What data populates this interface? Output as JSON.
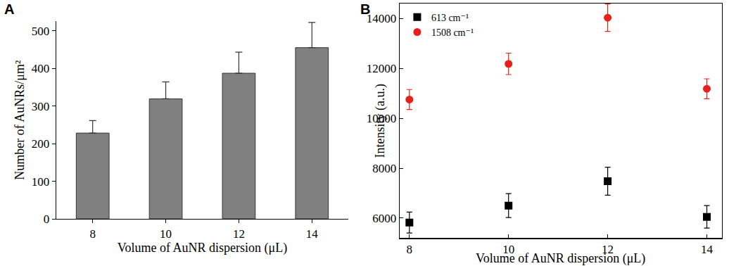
{
  "chart_data": [
    {
      "type": "bar",
      "title": "A",
      "x_label": "Volume of AuNR dispersion (μL)",
      "y_label": "Number of AuNRs/μm²",
      "categories": [
        "8",
        "10",
        "12",
        "14"
      ],
      "values": [
        228,
        319,
        387,
        455
      ],
      "errors": [
        33,
        45,
        56,
        67
      ],
      "color": "#808080",
      "ylim": [
        0,
        525
      ],
      "yticks": [
        0,
        100,
        200,
        300,
        400,
        500
      ],
      "grid": false
    },
    {
      "type": "scatter",
      "title": "B",
      "x_label": "Volume of AuNR dispersion (μL)",
      "y_label": "Intensity (a.u.)",
      "x": [
        8,
        10,
        12,
        14
      ],
      "series": [
        {
          "name": "613 cm⁻¹",
          "color": "#000000",
          "marker": "square",
          "values": [
            5820,
            6500,
            7480,
            6050
          ],
          "errors": [
            420,
            480,
            560,
            450
          ]
        },
        {
          "name": "1508 cm⁻¹",
          "color": "#e8201c",
          "marker": "circle",
          "values": [
            10750,
            12180,
            14030,
            11180
          ],
          "errors": [
            400,
            430,
            550,
            400
          ]
        }
      ],
      "xlim": [
        7.8,
        14.3
      ],
      "xticks": [
        8,
        10,
        12,
        14
      ],
      "ylim": [
        5200,
        14600
      ],
      "yticks": [
        6000,
        8000,
        10000,
        12000,
        14000
      ],
      "grid": false,
      "legend": "upper left"
    }
  ]
}
